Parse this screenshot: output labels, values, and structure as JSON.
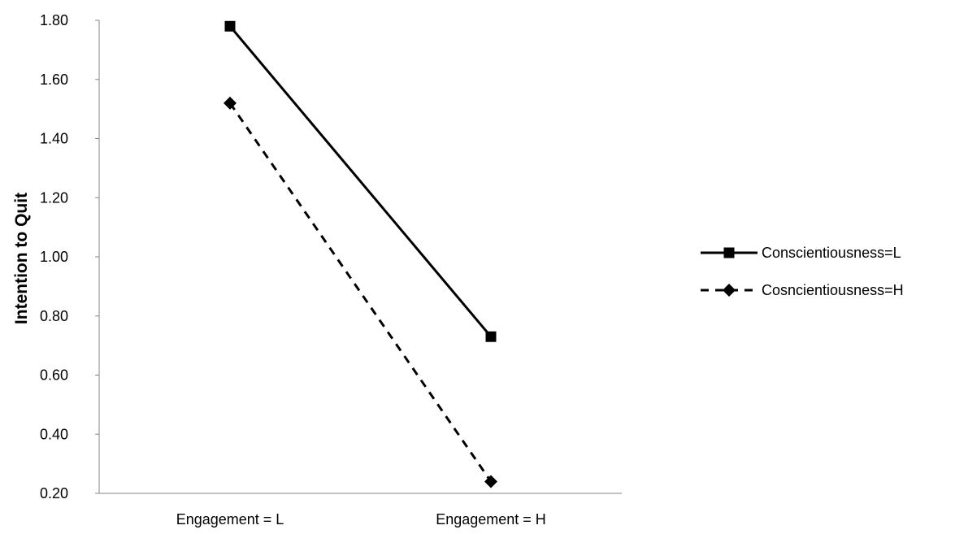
{
  "chart_data": {
    "type": "line",
    "categories": [
      "Engagement = L",
      "Engagement = H"
    ],
    "series": [
      {
        "name": "Conscientiousness=L",
        "values": [
          1.78,
          0.73
        ],
        "line_style": "solid",
        "marker": "square",
        "color": "#000000"
      },
      {
        "name": "Cosncientiousness=H",
        "values": [
          1.52,
          0.24
        ],
        "line_style": "dashed",
        "marker": "diamond",
        "color": "#000000"
      }
    ],
    "ylabel": "Intention to Quit",
    "xlabel": "",
    "ylim": [
      0.2,
      1.8
    ],
    "yticks": [
      "1.80",
      "1.60",
      "1.40",
      "1.20",
      "1.00",
      "0.80",
      "0.60",
      "0.40",
      "0.20"
    ],
    "grid": false,
    "legend_position": "right"
  }
}
